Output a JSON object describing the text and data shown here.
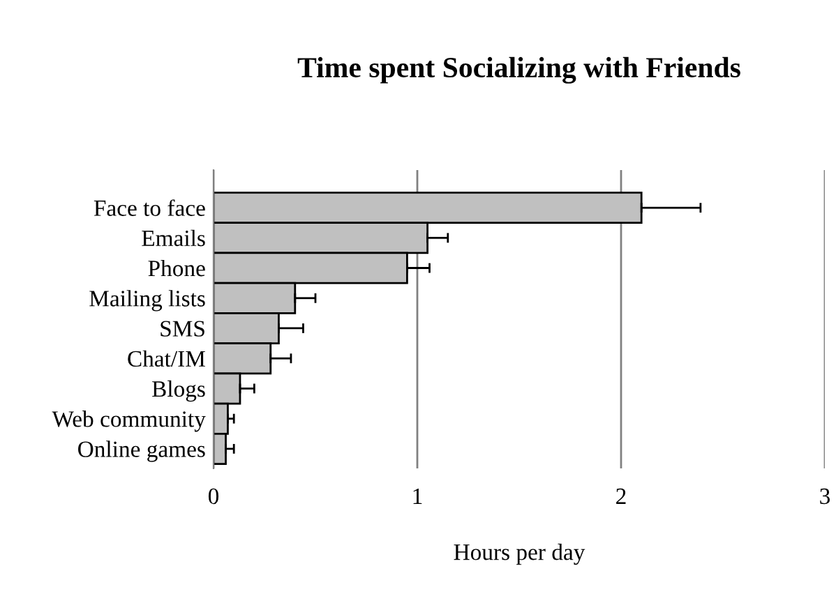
{
  "chart_data": {
    "type": "bar",
    "orientation": "horizontal",
    "title": "Time spent Socializing with Friends",
    "xlabel": "Hours per day",
    "categories": [
      "Face to face",
      "Emails",
      "Phone",
      "Mailing lists",
      "SMS",
      "Chat/IM",
      "Blogs",
      "Web community",
      "Online games"
    ],
    "values": [
      2.1,
      1.05,
      0.95,
      0.4,
      0.32,
      0.28,
      0.13,
      0.07,
      0.06
    ],
    "errors": [
      0.29,
      0.1,
      0.11,
      0.1,
      0.12,
      0.1,
      0.07,
      0.03,
      0.04
    ],
    "color": "#c0c0c0",
    "xlim": [
      0,
      3
    ],
    "xticks": [
      0,
      1,
      2,
      3
    ],
    "grid": "x",
    "legend": false
  }
}
